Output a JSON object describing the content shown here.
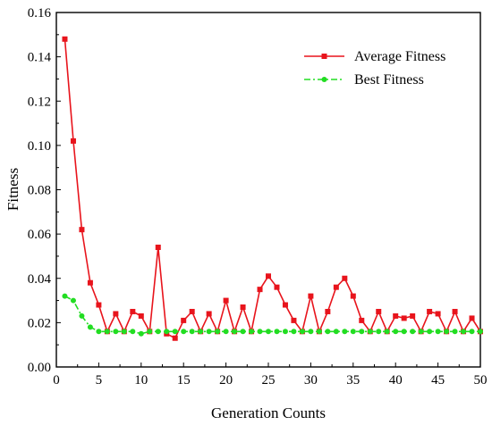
{
  "chart_data": {
    "type": "line",
    "xlabel": "Generation Counts",
    "ylabel": "Fitness",
    "xlim": [
      0,
      50
    ],
    "ylim": [
      0,
      0.16
    ],
    "x_ticks": [
      0,
      5,
      10,
      15,
      20,
      25,
      30,
      35,
      40,
      45,
      50
    ],
    "y_ticks": [
      0.0,
      0.02,
      0.04,
      0.06,
      0.08,
      0.1,
      0.12,
      0.14,
      0.16
    ],
    "x_tick_labels": [
      "0",
      "5",
      "10",
      "15",
      "20",
      "25",
      "30",
      "35",
      "40",
      "45",
      "50"
    ],
    "y_tick_labels": [
      "0.00",
      "0.02",
      "0.04",
      "0.06",
      "0.08",
      "0.10",
      "0.12",
      "0.14",
      "0.16"
    ],
    "grid": false,
    "legend_position": "top-right",
    "x": [
      1,
      2,
      3,
      4,
      5,
      6,
      7,
      8,
      9,
      10,
      11,
      12,
      13,
      14,
      15,
      16,
      17,
      18,
      19,
      20,
      21,
      22,
      23,
      24,
      25,
      26,
      27,
      28,
      29,
      30,
      31,
      32,
      33,
      34,
      35,
      36,
      37,
      38,
      39,
      40,
      41,
      42,
      43,
      44,
      45,
      46,
      47,
      48,
      49,
      50
    ],
    "series": [
      {
        "name": "Average Fitness",
        "color": "#e8141c",
        "marker": "square",
        "line_style": "solid",
        "values": [
          0.148,
          0.102,
          0.062,
          0.038,
          0.028,
          0.016,
          0.024,
          0.016,
          0.025,
          0.023,
          0.016,
          0.054,
          0.015,
          0.013,
          0.021,
          0.025,
          0.016,
          0.024,
          0.016,
          0.03,
          0.016,
          0.027,
          0.016,
          0.035,
          0.041,
          0.036,
          0.028,
          0.021,
          0.016,
          0.032,
          0.016,
          0.025,
          0.036,
          0.04,
          0.032,
          0.021,
          0.016,
          0.025,
          0.016,
          0.023,
          0.022,
          0.023,
          0.016,
          0.025,
          0.024,
          0.016,
          0.025,
          0.016,
          0.022,
          0.016
        ]
      },
      {
        "name": "Best Fitness",
        "color": "#22dd22",
        "marker": "circle",
        "line_style": "dash-dot",
        "values": [
          0.032,
          0.03,
          0.023,
          0.018,
          0.016,
          0.016,
          0.016,
          0.016,
          0.016,
          0.015,
          0.016,
          0.016,
          0.016,
          0.016,
          0.016,
          0.016,
          0.016,
          0.016,
          0.016,
          0.016,
          0.016,
          0.016,
          0.016,
          0.016,
          0.016,
          0.016,
          0.016,
          0.016,
          0.016,
          0.016,
          0.016,
          0.016,
          0.016,
          0.016,
          0.016,
          0.016,
          0.016,
          0.016,
          0.016,
          0.016,
          0.016,
          0.016,
          0.016,
          0.016,
          0.016,
          0.016,
          0.016,
          0.016,
          0.016,
          0.016
        ]
      }
    ]
  }
}
